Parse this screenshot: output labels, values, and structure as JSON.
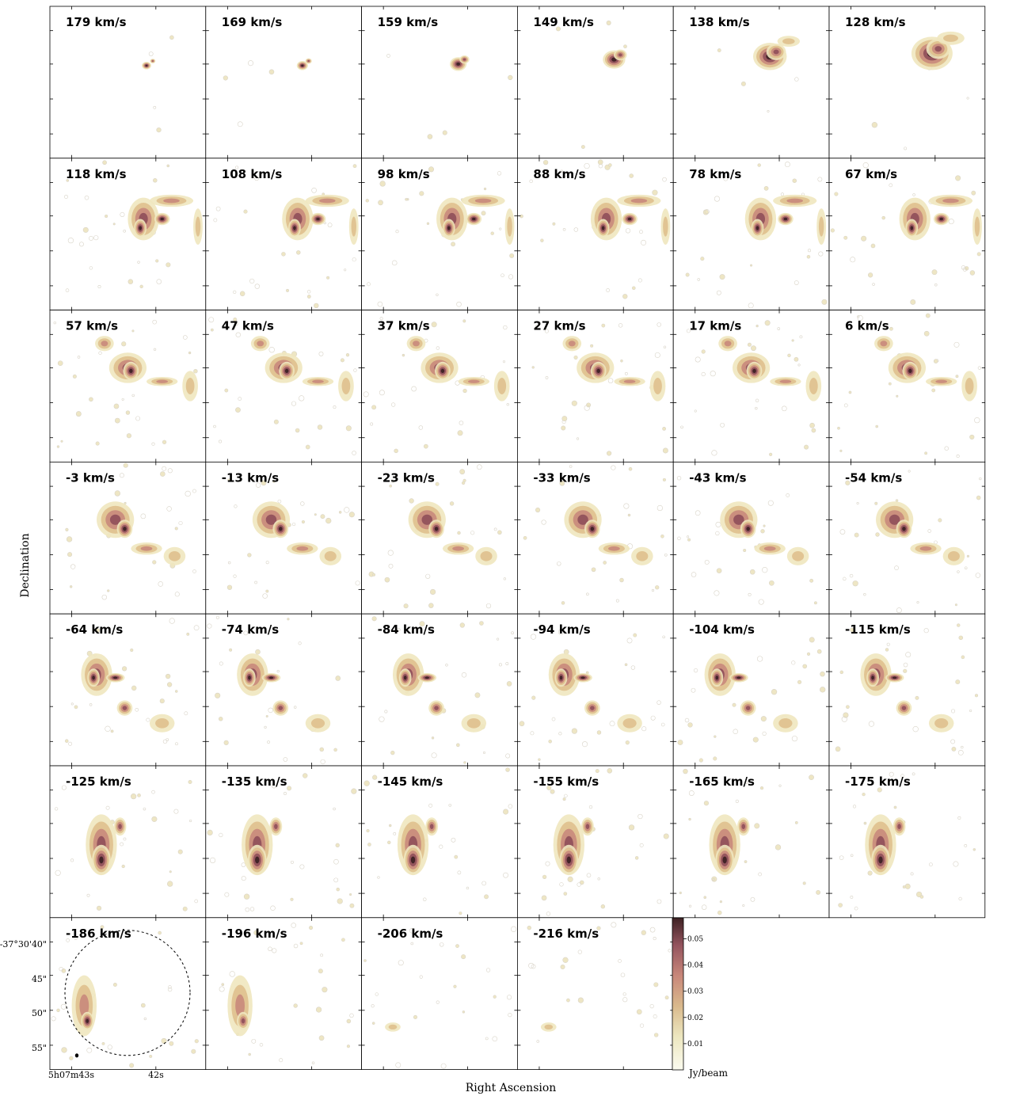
{
  "figure": {
    "xlabel": "Right Ascension",
    "ylabel": "Declination",
    "colorbar": {
      "unit_label": "Jy/beam",
      "ticks": [
        "0.01",
        "0.02",
        "0.03",
        "0.04",
        "0.05"
      ],
      "tick_values": [
        0.01,
        0.02,
        0.03,
        0.04,
        0.05
      ],
      "range": [
        0.0,
        0.058
      ],
      "colors": [
        "#fbfbef",
        "#ece6bf",
        "#d9b98c",
        "#c8877a",
        "#94545e",
        "#3d2123"
      ]
    },
    "ra_ticks": [
      "5h07m43s",
      "42s"
    ],
    "dec_ticks": [
      "-37°30'40\"",
      "45\"",
      "50\"",
      "55\""
    ],
    "panels": [
      "179 km/s",
      "169 km/s",
      "159 km/s",
      "149 km/s",
      "138 km/s",
      "128 km/s",
      "118 km/s",
      "108 km/s",
      "98 km/s",
      "88 km/s",
      "78 km/s",
      "67 km/s",
      "57 km/s",
      "47 km/s",
      "37 km/s",
      "27 km/s",
      "17 km/s",
      "6 km/s",
      "-3 km/s",
      "-13 km/s",
      "-23 km/s",
      "-33 km/s",
      "-43 km/s",
      "-54 km/s",
      "-64 km/s",
      "-74 km/s",
      "-84 km/s",
      "-94 km/s",
      "-104 km/s",
      "-115 km/s",
      "-125 km/s",
      "-135 km/s",
      "-145 km/s",
      "-155 km/s",
      "-165 km/s",
      "-175 km/s",
      "-186 km/s",
      "-196 km/s",
      "-206 km/s",
      "-216 km/s"
    ]
  }
}
